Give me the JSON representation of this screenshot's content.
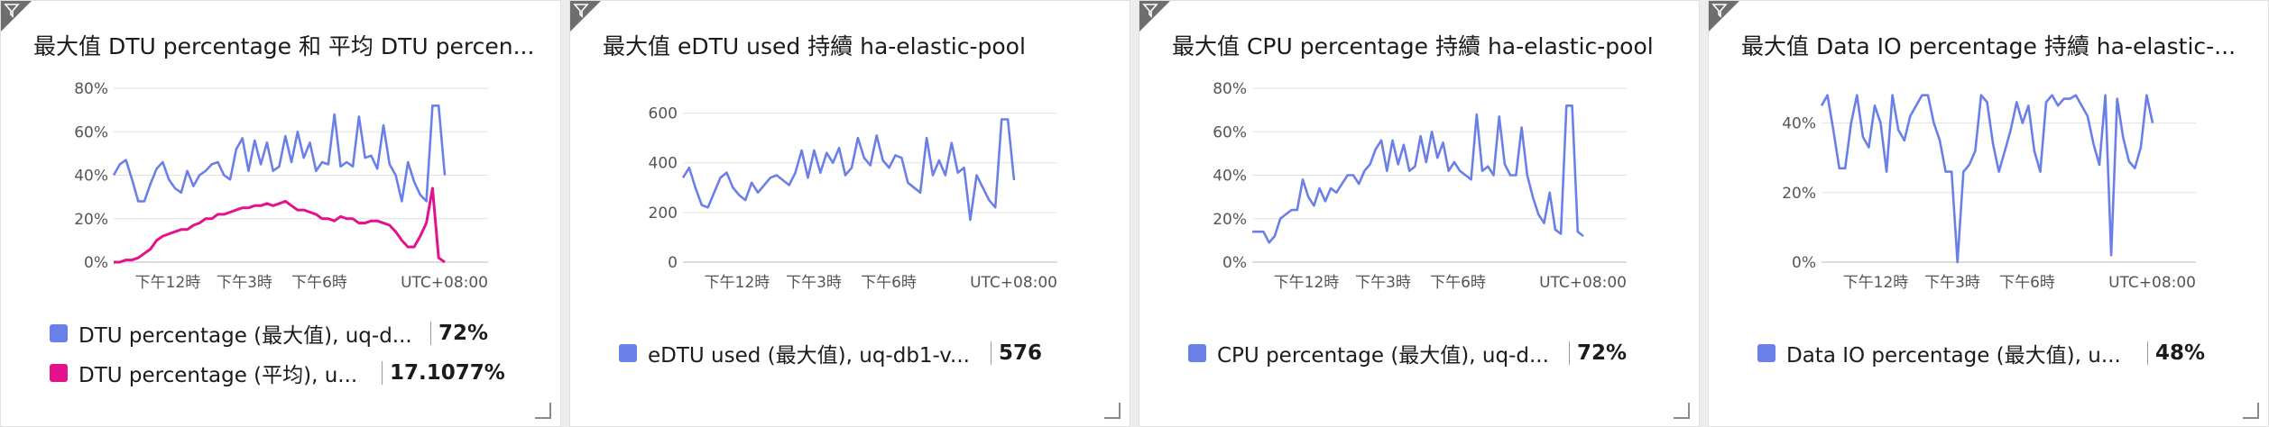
{
  "tiles": [
    {
      "title": "最大值 DTU percentage 和 平均 DTU percen...",
      "legend": [
        {
          "label": "DTU percentage (最大值), uq-d...",
          "value": "72%",
          "color": "#6a80e8"
        },
        {
          "label": "DTU percentage (平均), u...",
          "value": "17.1077%",
          "color": "#e3128c"
        }
      ]
    },
    {
      "title": "最大值 eDTU used 持續 ha-elastic-pool",
      "legend": [
        {
          "label": "eDTU used (最大值), uq-db1-v...",
          "value": "576",
          "color": "#6a80e8"
        }
      ]
    },
    {
      "title": "最大值 CPU percentage 持續 ha-elastic-pool",
      "legend": [
        {
          "label": "CPU percentage (最大值), uq-d...",
          "value": "72%",
          "color": "#6a80e8"
        }
      ]
    },
    {
      "title": "最大值 Data IO percentage 持續 ha-elastic-...",
      "legend": [
        {
          "label": "Data IO percentage (最大值), u...",
          "value": "48%",
          "color": "#6a80e8"
        }
      ]
    }
  ],
  "chart_data": [
    {
      "type": "line",
      "x_ticks": [
        "下午12時",
        "下午3時",
        "下午6時",
        "UTC+08:00"
      ],
      "y_ticks": [
        "80%",
        "60%",
        "40%",
        "20%",
        "0%"
      ],
      "ylim": [
        0,
        80
      ],
      "grid": true,
      "series": [
        {
          "name": "DTU percentage (最大值)",
          "color": "#6a80e8",
          "values": [
            40,
            45,
            47,
            38,
            28,
            28,
            36,
            43,
            46,
            38,
            34,
            32,
            42,
            35,
            40,
            42,
            45,
            46,
            40,
            38,
            52,
            57,
            42,
            56,
            45,
            55,
            42,
            44,
            58,
            46,
            60,
            48,
            55,
            42,
            46,
            45,
            68,
            44,
            46,
            44,
            67,
            48,
            49,
            43,
            63,
            45,
            40,
            28,
            46,
            37,
            31,
            28,
            72,
            72,
            40
          ]
        },
        {
          "name": "DTU percentage (平均)",
          "color": "#e3128c",
          "values": [
            0,
            0,
            1,
            1,
            2,
            4,
            6,
            10,
            12,
            13,
            14,
            15,
            15,
            17,
            18,
            20,
            20,
            22,
            22,
            23,
            24,
            25,
            25,
            26,
            26,
            27,
            26,
            27,
            28,
            26,
            24,
            24,
            23,
            22,
            20,
            20,
            19,
            21,
            20,
            20,
            18,
            18,
            19,
            19,
            18,
            17,
            14,
            10,
            7,
            7,
            12,
            18,
            34,
            2,
            0
          ]
        }
      ]
    },
    {
      "type": "line",
      "x_ticks": [
        "下午12時",
        "下午3時",
        "下午6時",
        "UTC+08:00"
      ],
      "y_ticks": [
        "600",
        "400",
        "200",
        "0"
      ],
      "ylim": [
        0,
        700
      ],
      "grid": true,
      "series": [
        {
          "name": "eDTU used (最大值)",
          "color": "#6a80e8",
          "values": [
            340,
            380,
            300,
            230,
            220,
            280,
            340,
            360,
            300,
            270,
            250,
            320,
            280,
            310,
            340,
            350,
            330,
            310,
            360,
            450,
            340,
            450,
            360,
            440,
            400,
            460,
            350,
            380,
            500,
            420,
            390,
            510,
            410,
            380,
            430,
            420,
            320,
            300,
            280,
            500,
            350,
            410,
            350,
            480,
            360,
            380,
            170,
            350,
            300,
            250,
            220,
            575,
            575,
            330
          ]
        }
      ]
    },
    {
      "type": "line",
      "x_ticks": [
        "下午12時",
        "下午3時",
        "下午6時",
        "UTC+08:00"
      ],
      "y_ticks": [
        "80%",
        "60%",
        "40%",
        "20%",
        "0%"
      ],
      "ylim": [
        0,
        80
      ],
      "grid": true,
      "series": [
        {
          "name": "CPU percentage (最大值)",
          "color": "#6a80e8",
          "values": [
            14,
            14,
            14,
            9,
            12,
            20,
            22,
            24,
            24,
            38,
            30,
            26,
            34,
            28,
            34,
            32,
            36,
            40,
            40,
            36,
            42,
            45,
            52,
            56,
            42,
            56,
            45,
            54,
            42,
            44,
            58,
            46,
            60,
            48,
            55,
            42,
            46,
            42,
            40,
            38,
            68,
            42,
            44,
            40,
            67,
            45,
            40,
            40,
            62,
            40,
            30,
            22,
            18,
            32,
            15,
            13,
            72,
            72,
            14,
            12
          ]
        }
      ]
    },
    {
      "type": "line",
      "x_ticks": [
        "下午12時",
        "下午3時",
        "下午6時",
        "UTC+08:00"
      ],
      "y_ticks": [
        "40%",
        "20%",
        "0%"
      ],
      "ylim": [
        0,
        50
      ],
      "grid": true,
      "series": [
        {
          "name": "Data IO percentage (最大值)",
          "color": "#6a80e8",
          "values": [
            45,
            48,
            38,
            27,
            27,
            40,
            48,
            36,
            33,
            45,
            40,
            26,
            48,
            38,
            35,
            42,
            45,
            48,
            48,
            40,
            35,
            26,
            26,
            0,
            26,
            28,
            32,
            48,
            46,
            34,
            26,
            32,
            38,
            46,
            40,
            45,
            32,
            26,
            46,
            48,
            45,
            47,
            47,
            48,
            45,
            42,
            34,
            28,
            48,
            2,
            47,
            36,
            29,
            27,
            33,
            48,
            40
          ]
        }
      ]
    }
  ]
}
